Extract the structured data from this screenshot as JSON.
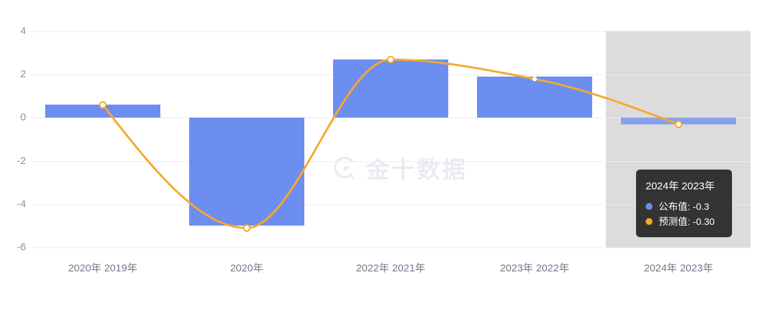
{
  "chart_data": {
    "type": "bar",
    "title": "",
    "categories": [
      "2020年 2019年",
      "2020年",
      "2022年 2021年",
      "2023年 2022年",
      "2024年 2023年"
    ],
    "series": [
      {
        "name": "公布值",
        "type": "bar",
        "color": "#6c8ef0",
        "values": [
          0.6,
          -5.0,
          2.7,
          1.9,
          -0.3
        ]
      },
      {
        "name": "预测值",
        "type": "line",
        "color": "#f7a82c",
        "values": [
          0.6,
          -5.1,
          2.7,
          1.8,
          -0.3
        ]
      }
    ],
    "xlabel": "",
    "ylabel": "",
    "ylim": [
      -6,
      4
    ],
    "yticks": [
      4,
      2,
      0,
      -2,
      -4,
      -6
    ],
    "grid": true,
    "legend_position": "none",
    "highlighted_category_index": 4
  },
  "tooltip": {
    "title": "2024年 2023年",
    "rows": [
      {
        "label": "公布值",
        "value": "-0.3",
        "text": "公布值: -0.3",
        "color": "#6c8ef0"
      },
      {
        "label": "预测值",
        "value": "-0.30",
        "text": "预测值: -0.30",
        "color": "#f7a82c"
      }
    ]
  },
  "watermark": {
    "text": "金十数据"
  },
  "colors": {
    "bar": "#6c8ef0",
    "line": "#f7a82c",
    "band": "#dcdcdc",
    "gridline": "#ebedf1",
    "tooltip_bg": "#333333",
    "watermark": "#e9ebf2"
  }
}
